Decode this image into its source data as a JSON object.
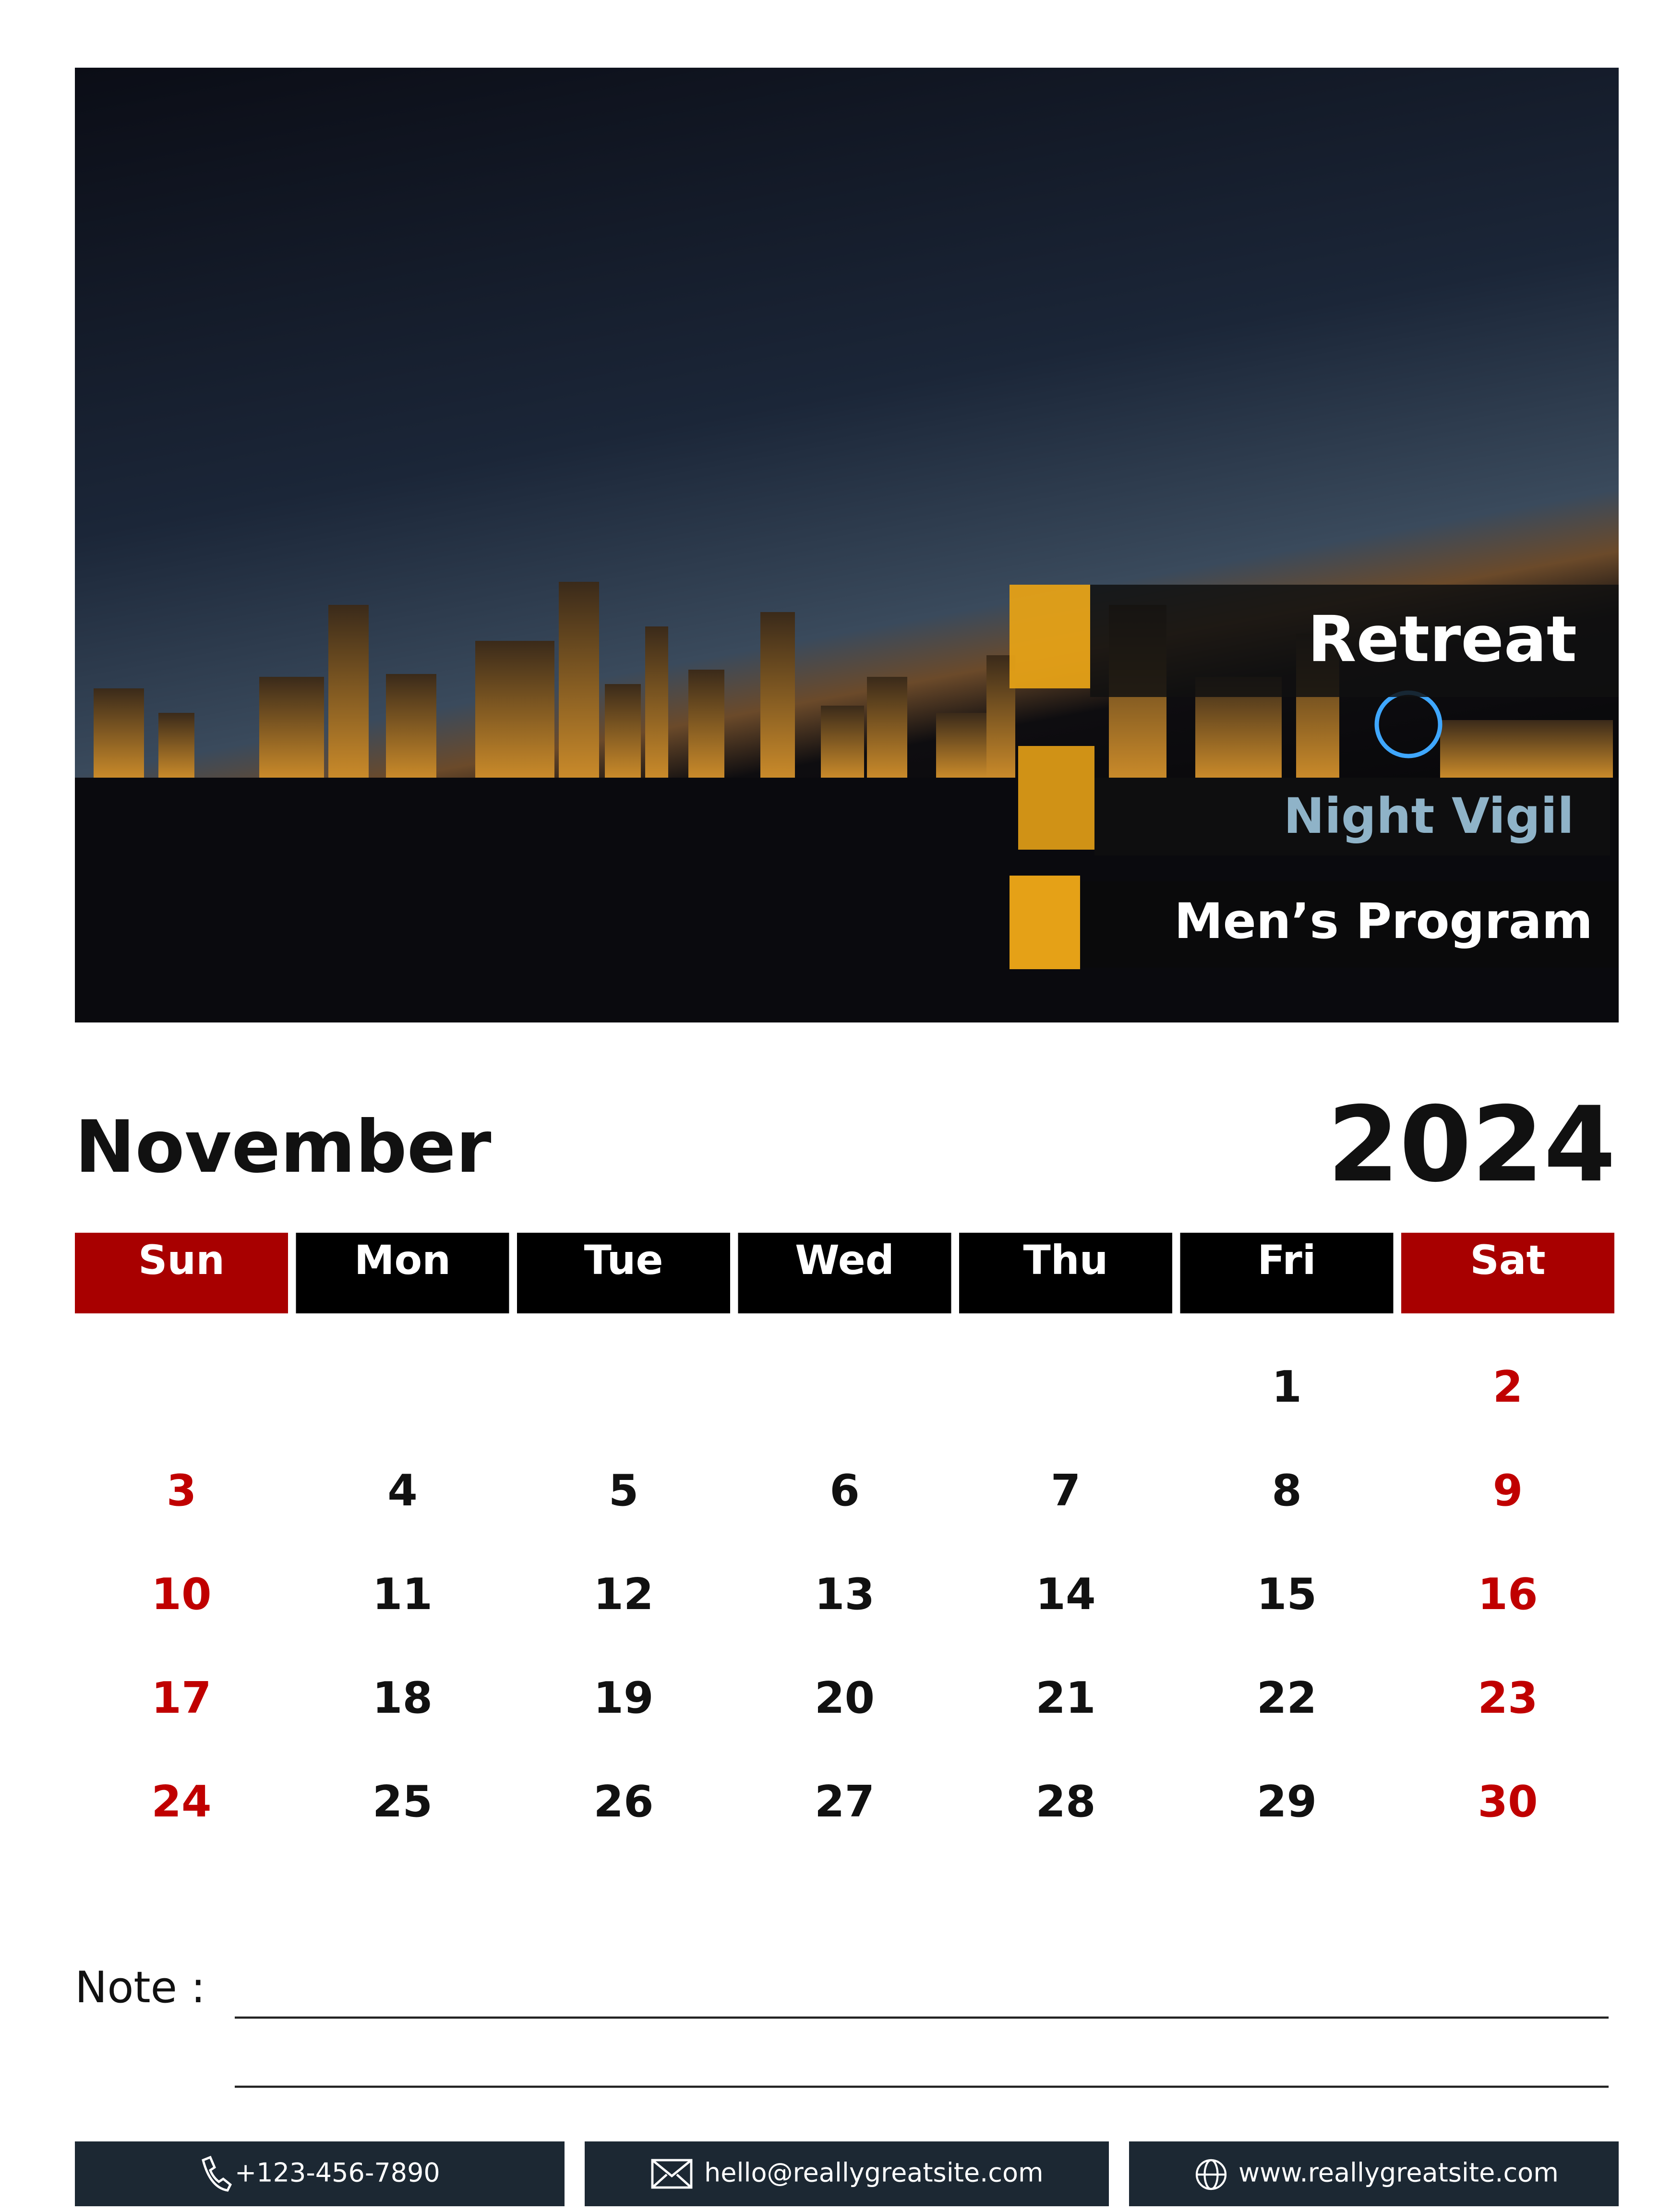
{
  "banner": {
    "items": [
      "Retreat",
      "Night Vigil",
      "Men’s Program"
    ]
  },
  "calendar": {
    "month": "November",
    "year": "2024",
    "weekdays": [
      "Sun",
      "Mon",
      "Tue",
      "Wed",
      "Thu",
      "Fri",
      "Sat"
    ],
    "weeks": [
      [
        null,
        null,
        null,
        null,
        null,
        1,
        2
      ],
      [
        3,
        4,
        5,
        6,
        7,
        8,
        9
      ],
      [
        10,
        11,
        12,
        13,
        14,
        15,
        16
      ],
      [
        17,
        18,
        19,
        20,
        21,
        22,
        23
      ],
      [
        24,
        25,
        26,
        27,
        28,
        29,
        30
      ]
    ]
  },
  "note": {
    "label": "Note :"
  },
  "footer": {
    "phone": "+123-456-7890",
    "email": "hello@reallygreatsite.com",
    "website": "www.reallygreatsite.com"
  }
}
